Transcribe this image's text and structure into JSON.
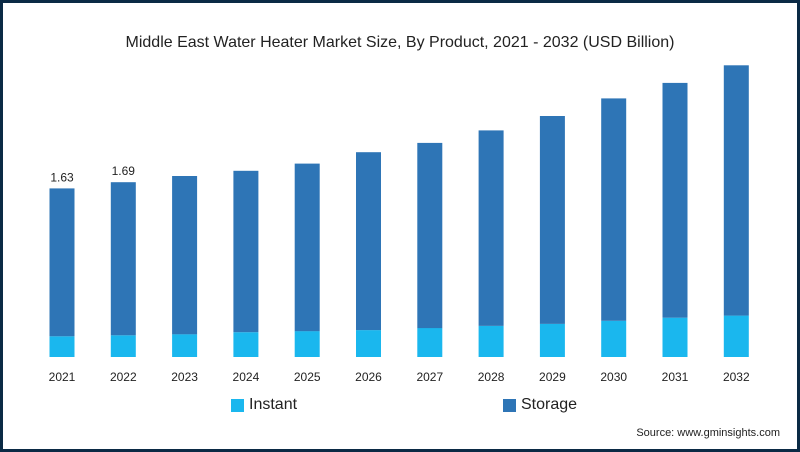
{
  "colors": {
    "instant": "#1ab7ee",
    "storage": "#2e75b6",
    "border": "#0b2a45",
    "text": "#222222"
  },
  "source": "Source: www.gminsights.com",
  "chart_data": {
    "type": "bar",
    "stacked": true,
    "title": "Middle East Water Heater Market Size, By Product, 2021 - 2032 (USD Billion)",
    "xlabel": "",
    "ylabel": "",
    "categories": [
      "2021",
      "2022",
      "2023",
      "2024",
      "2025",
      "2026",
      "2027",
      "2028",
      "2029",
      "2030",
      "2031",
      "2032"
    ],
    "series": [
      {
        "name": "Instant",
        "color": "#1ab7ee",
        "values": [
          0.2,
          0.21,
          0.22,
          0.24,
          0.25,
          0.26,
          0.28,
          0.3,
          0.32,
          0.35,
          0.38,
          0.4
        ]
      },
      {
        "name": "Storage",
        "color": "#2e75b6",
        "values": [
          1.43,
          1.48,
          1.53,
          1.56,
          1.62,
          1.72,
          1.79,
          1.89,
          2.01,
          2.15,
          2.27,
          2.42
        ]
      }
    ],
    "data_labels": [
      {
        "category": "2021",
        "text": "1.63"
      },
      {
        "category": "2022",
        "text": "1.69"
      }
    ],
    "ylim": [
      0,
      2.9
    ],
    "grid": false,
    "legend": "bottom"
  }
}
